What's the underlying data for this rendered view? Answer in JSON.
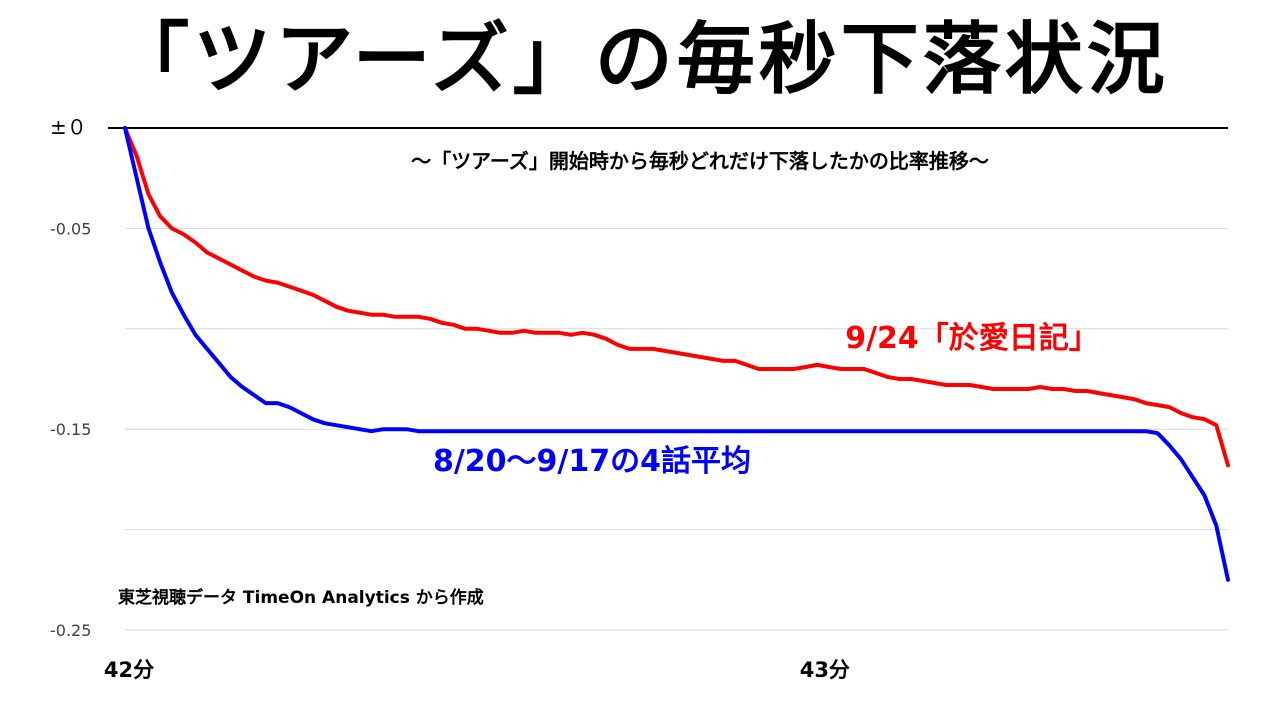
{
  "chart_data": {
    "type": "line",
    "title": "「ツアーズ」の毎秒下落状況",
    "subtitle": "～「ツアーズ」開始時から毎秒どれだけ下落したかの比率推移～",
    "source_note": "東芝視聴データ TimeOn Analytics から作成",
    "x_tick_labels": [
      "42分",
      "43分"
    ],
    "y_tick_labels": [
      "±０",
      "-0.05",
      "-0.15",
      "-0.25"
    ],
    "y_ticks": [
      0,
      -0.05,
      -0.15,
      -0.25
    ],
    "ylim": [
      -0.25,
      0
    ],
    "xlim": [
      0,
      94
    ],
    "grid": true,
    "series": [
      {
        "name": "9/24「於愛日記」",
        "color": "#ff0000",
        "x": [
          0,
          1,
          2,
          3,
          4,
          5,
          6,
          7,
          8,
          9,
          10,
          11,
          12,
          13,
          14,
          15,
          16,
          17,
          18,
          19,
          20,
          21,
          22,
          23,
          24,
          25,
          26,
          27,
          28,
          29,
          30,
          31,
          32,
          33,
          34,
          35,
          36,
          37,
          38,
          39,
          40,
          41,
          42,
          43,
          44,
          45,
          46,
          47,
          48,
          49,
          50,
          51,
          52,
          53,
          54,
          55,
          56,
          57,
          58,
          59,
          60,
          61,
          62,
          63,
          64,
          65,
          66,
          67,
          68,
          69,
          70,
          71,
          72,
          73,
          74,
          75,
          76,
          77,
          78,
          79,
          80,
          81,
          82,
          83,
          84,
          85,
          86,
          87,
          88,
          89,
          90,
          91,
          92,
          93,
          94
        ],
        "values": [
          0,
          -0.014,
          -0.033,
          -0.044,
          -0.05,
          -0.053,
          -0.057,
          -0.062,
          -0.065,
          -0.068,
          -0.071,
          -0.074,
          -0.076,
          -0.077,
          -0.079,
          -0.081,
          -0.083,
          -0.086,
          -0.089,
          -0.091,
          -0.092,
          -0.093,
          -0.093,
          -0.094,
          -0.094,
          -0.094,
          -0.095,
          -0.097,
          -0.098,
          -0.1,
          -0.1,
          -0.101,
          -0.102,
          -0.102,
          -0.101,
          -0.102,
          -0.102,
          -0.102,
          -0.103,
          -0.102,
          -0.103,
          -0.105,
          -0.108,
          -0.11,
          -0.11,
          -0.11,
          -0.111,
          -0.112,
          -0.113,
          -0.114,
          -0.115,
          -0.116,
          -0.116,
          -0.118,
          -0.12,
          -0.12,
          -0.12,
          -0.12,
          -0.119,
          -0.118,
          -0.119,
          -0.12,
          -0.12,
          -0.12,
          -0.122,
          -0.124,
          -0.125,
          -0.125,
          -0.126,
          -0.127,
          -0.128,
          -0.128,
          -0.128,
          -0.129,
          -0.13,
          -0.13,
          -0.13,
          -0.13,
          -0.129,
          -0.13,
          -0.13,
          -0.131,
          -0.131,
          -0.132,
          -0.133,
          -0.134,
          -0.135,
          -0.137,
          -0.138,
          -0.139,
          -0.142,
          -0.144,
          -0.145,
          -0.148,
          -0.168
        ]
      },
      {
        "name": "8/20～9/17の4話平均",
        "color": "#0000ff",
        "x": [
          0,
          1,
          2,
          3,
          4,
          5,
          6,
          7,
          8,
          9,
          10,
          11,
          12,
          13,
          14,
          15,
          16,
          17,
          18,
          19,
          20,
          21,
          22,
          23,
          24,
          25,
          26,
          27,
          28,
          29,
          30,
          31,
          32,
          33,
          34,
          35,
          36,
          37,
          38,
          39,
          40,
          41,
          42,
          43,
          44,
          45,
          46,
          47,
          48,
          49,
          50,
          51,
          52,
          53,
          54,
          55,
          56,
          57,
          58,
          59,
          60,
          61,
          62,
          63,
          64,
          65,
          66,
          67,
          68,
          69,
          70,
          71,
          72,
          73,
          74,
          75,
          76,
          77,
          78,
          79,
          80,
          81,
          82,
          83,
          84,
          85,
          86,
          87,
          88,
          89,
          90,
          91,
          92,
          93,
          94
        ],
        "values": [
          0,
          -0.025,
          -0.05,
          -0.067,
          -0.082,
          -0.093,
          -0.103,
          -0.11,
          -0.117,
          -0.124,
          -0.129,
          -0.133,
          -0.137,
          -0.137,
          -0.139,
          -0.142,
          -0.145,
          -0.147,
          -0.148,
          -0.149,
          -0.15,
          -0.151,
          -0.15,
          -0.15,
          -0.15,
          -0.151,
          -0.151,
          -0.151,
          -0.151,
          -0.151,
          -0.151,
          -0.151,
          -0.151,
          -0.151,
          -0.151,
          -0.151,
          -0.151,
          -0.151,
          -0.151,
          -0.151,
          -0.151,
          -0.151,
          -0.151,
          -0.151,
          -0.151,
          -0.151,
          -0.151,
          -0.151,
          -0.151,
          -0.151,
          -0.151,
          -0.151,
          -0.151,
          -0.151,
          -0.151,
          -0.151,
          -0.151,
          -0.151,
          -0.151,
          -0.151,
          -0.151,
          -0.151,
          -0.151,
          -0.151,
          -0.151,
          -0.151,
          -0.151,
          -0.151,
          -0.151,
          -0.151,
          -0.151,
          -0.151,
          -0.151,
          -0.151,
          -0.151,
          -0.151,
          -0.151,
          -0.151,
          -0.151,
          -0.151,
          -0.151,
          -0.151,
          -0.151,
          -0.151,
          -0.151,
          -0.151,
          -0.151,
          -0.151,
          -0.152,
          -0.158,
          -0.165,
          -0.174,
          -0.183,
          -0.198,
          -0.225
        ]
      }
    ]
  }
}
